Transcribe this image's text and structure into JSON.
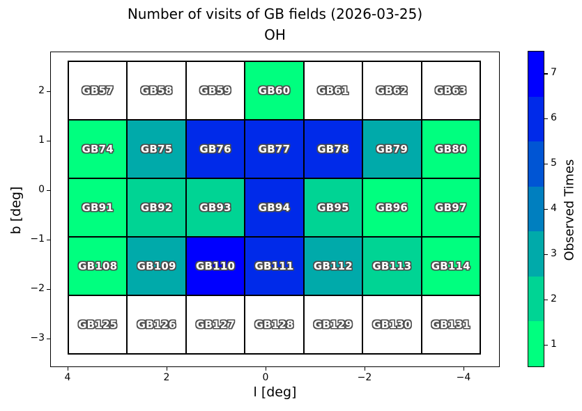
{
  "title": {
    "line1": "Number of visits of GB fields (2026-03-25)",
    "line2": "OH"
  },
  "chart_data": {
    "type": "heatmap",
    "title": "Number of visits of GB fields (2026-03-25)",
    "subtitle": "OH",
    "xlabel": "l [deg]",
    "ylabel": "b [deg]",
    "x_tick_values": [
      4,
      2,
      0,
      -2,
      -4
    ],
    "y_tick_values": [
      2,
      1,
      0,
      -1,
      -2,
      -3
    ],
    "x_axis_inverted": true,
    "grid_columns_l_centers": [
      3.4,
      2.2,
      1.0,
      -0.2,
      -1.4,
      -2.6,
      -3.8
    ],
    "grid_rows_b_centers": [
      2.0,
      0.8,
      -0.4,
      -1.6,
      -2.8
    ],
    "colorbar": {
      "label": "Observed Times",
      "tick_values_bottom_to_top": [
        1,
        2,
        3,
        4,
        5,
        6,
        7
      ],
      "value_colors": {
        "0": "#ffffff",
        "1": "#00ff7f",
        "2": "#00d494",
        "3": "#00aaaa",
        "4": "#007fbf",
        "5": "#0055d4",
        "6": "#002ae9",
        "7": "#0000ff"
      }
    },
    "rows": [
      {
        "fields": [
          {
            "name": "GB57",
            "visits": 0
          },
          {
            "name": "GB58",
            "visits": 0
          },
          {
            "name": "GB59",
            "visits": 0
          },
          {
            "name": "GB60",
            "visits": 1
          },
          {
            "name": "GB61",
            "visits": 0
          },
          {
            "name": "GB62",
            "visits": 0
          },
          {
            "name": "GB63",
            "visits": 0
          }
        ]
      },
      {
        "fields": [
          {
            "name": "GB74",
            "visits": 1
          },
          {
            "name": "GB75",
            "visits": 3
          },
          {
            "name": "GB76",
            "visits": 6
          },
          {
            "name": "GB77",
            "visits": 6
          },
          {
            "name": "GB78",
            "visits": 6
          },
          {
            "name": "GB79",
            "visits": 3
          },
          {
            "name": "GB80",
            "visits": 1
          }
        ]
      },
      {
        "fields": [
          {
            "name": "GB91",
            "visits": 1
          },
          {
            "name": "GB92",
            "visits": 2
          },
          {
            "name": "GB93",
            "visits": 2
          },
          {
            "name": "GB94",
            "visits": 6
          },
          {
            "name": "GB95",
            "visits": 2
          },
          {
            "name": "GB96",
            "visits": 1
          },
          {
            "name": "GB97",
            "visits": 1
          }
        ]
      },
      {
        "fields": [
          {
            "name": "GB108",
            "visits": 1
          },
          {
            "name": "GB109",
            "visits": 3
          },
          {
            "name": "GB110",
            "visits": 7
          },
          {
            "name": "GB111",
            "visits": 6
          },
          {
            "name": "GB112",
            "visits": 3
          },
          {
            "name": "GB113",
            "visits": 2
          },
          {
            "name": "GB114",
            "visits": 1
          }
        ]
      },
      {
        "fields": [
          {
            "name": "GB125",
            "visits": 0
          },
          {
            "name": "GB126",
            "visits": 0
          },
          {
            "name": "GB127",
            "visits": 0
          },
          {
            "name": "GB128",
            "visits": 0
          },
          {
            "name": "GB129",
            "visits": 0
          },
          {
            "name": "GB130",
            "visits": 0
          },
          {
            "name": "GB131",
            "visits": 0
          }
        ]
      }
    ]
  }
}
